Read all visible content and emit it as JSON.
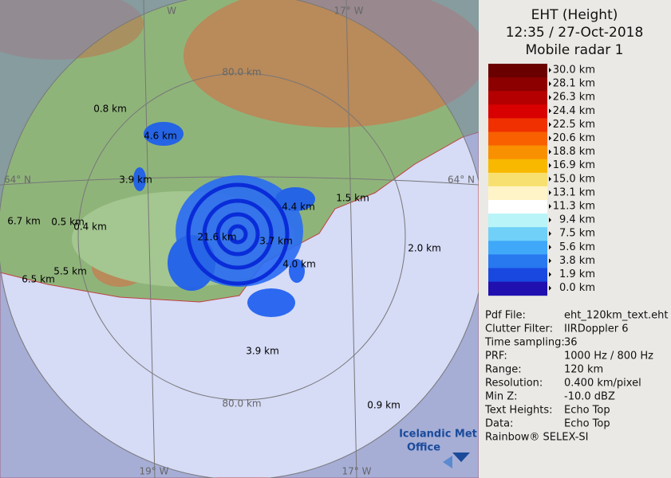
{
  "title": [
    "EHT (Height)",
    "12:35 / 27-Oct-2018",
    "Mobile radar 1"
  ],
  "scale": {
    "labels": [
      "30.0 km",
      "28.1 km",
      "26.3 km",
      "24.4 km",
      "22.5 km",
      "20.6 km",
      "18.8 km",
      "16.9 km",
      "15.0 km",
      "13.1 km",
      "11.3 km",
      "9.4 km",
      "7.5 km",
      "5.6 km",
      "3.8 km",
      "1.9 km",
      "0.0 km"
    ],
    "colors": [
      "#6a0000",
      "#8c0000",
      "#b40000",
      "#d80000",
      "#f03000",
      "#f86000",
      "#f89000",
      "#f8b800",
      "#f8e070",
      "#fff4c8",
      "#ffffff",
      "#b8f4f8",
      "#70d0f8",
      "#40a8f8",
      "#2878f0",
      "#1848e0",
      "#2010b0"
    ]
  },
  "info": [
    [
      "Pdf File:",
      "eht_120km_text.eht"
    ],
    [
      "Clutter Filter:",
      "IIRDoppler 6"
    ],
    [
      "Time sampling:",
      "36"
    ],
    [
      "PRF:",
      "1000 Hz / 800 Hz"
    ],
    [
      "Range:",
      "120 km"
    ],
    [
      "Resolution:",
      "0.400 km/pixel"
    ],
    [
      "Min Z:",
      "-10.0 dBZ"
    ],
    [
      "Text Heights:",
      "Echo Top"
    ],
    [
      "Data:",
      "Echo Top"
    ]
  ],
  "footer": "Rainbow® SELEX-SI",
  "logo": [
    "Icelandic Met",
    "Office"
  ],
  "grid_labels": [
    "80.0 km",
    "80.0 km",
    "64° N",
    "64° N",
    "19° W",
    "17° W",
    "17° W",
    "W"
  ],
  "echo_labels": [
    "0.8 km",
    "4.6 km",
    "3.9 km",
    "4.4 km",
    "1.5 km",
    "21.6 km",
    "3.7 km",
    "4.0 km",
    "2.0 km",
    "5.5 km",
    "6.5 km",
    "3.9 km",
    "0.9 km",
    "6.7 km",
    "0.5 km",
    "0.4 km"
  ]
}
